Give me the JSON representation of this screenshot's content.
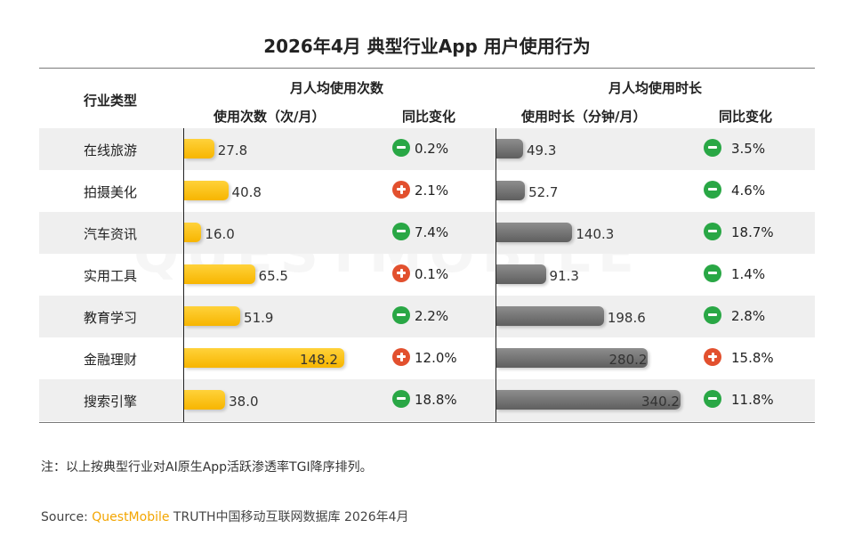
{
  "title": "2026年4月 典型行业App 用户使用行为",
  "headers": {
    "category": "行业类型",
    "group1": "月人均使用次数",
    "group2": "月人均使用时长",
    "g1_col1": "使用次数（次/月）",
    "g1_col2": "同比变化",
    "g2_col1": "使用时长（分钟/月）",
    "g2_col2": "同比变化"
  },
  "colors": {
    "bar_frequency": "#f7b500",
    "bar_duration": "#6e6e6e",
    "increase": "#e2502e",
    "decrease": "#29a745",
    "row_stripe": "#efefef"
  },
  "chart_data": {
    "type": "table",
    "categories": [
      "在线旅游",
      "拍摄美化",
      "汽车资讯",
      "实用工具",
      "教育学习",
      "金融理财",
      "搜索引擎"
    ],
    "usage_count": {
      "values": [
        27.8,
        40.8,
        16.0,
        65.5,
        51.9,
        148.2,
        38.0
      ],
      "labels": [
        "27.8",
        "40.8",
        "16.0",
        "65.5",
        "51.9",
        "148.2",
        "38.0"
      ],
      "yoy_labels": [
        "0.2%",
        "2.1%",
        "7.4%",
        "0.1%",
        "2.2%",
        "12.0%",
        "18.8%"
      ],
      "yoy_direction": [
        "down",
        "up",
        "down",
        "up",
        "down",
        "up",
        "down"
      ]
    },
    "usage_duration": {
      "values": [
        49.3,
        52.7,
        140.3,
        91.3,
        198.6,
        280.2,
        340.2
      ],
      "labels": [
        "49.3",
        "52.7",
        "140.3",
        "91.3",
        "198.6",
        "280.2",
        "340.2"
      ],
      "yoy_labels": [
        "3.5%",
        "4.6%",
        "18.7%",
        "1.4%",
        "2.8%",
        "15.8%",
        "11.8%"
      ],
      "yoy_direction": [
        "down",
        "down",
        "down",
        "down",
        "down",
        "up",
        "down"
      ]
    }
  },
  "note": "注：以上按典型行业对AI原生App活跃渗透率TGI降序排列。",
  "source": {
    "prefix": "Source:  ",
    "brand": "QuestMobile",
    "rest": " TRUTH中国移动互联网数据库 2026年4月"
  }
}
